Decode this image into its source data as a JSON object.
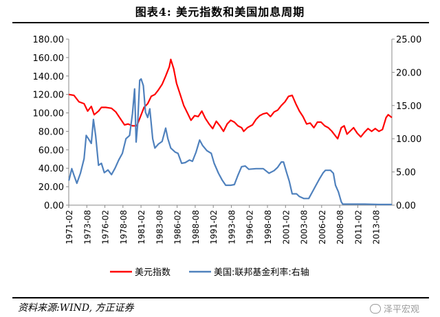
{
  "title": "图表4:  美元指数和美国加息周期",
  "source": "资料来源:WIND, 方正证券",
  "watermark": "泽平宏观",
  "chart_data": {
    "type": "line",
    "x_tick_labels": [
      "1971-02",
      "1973-08",
      "1976-02",
      "1978-08",
      "1981-02",
      "1983-08",
      "1986-02",
      "1988-08",
      "1991-02",
      "1993-08",
      "1996-02",
      "1998-08",
      "2001-02",
      "2003-08",
      "2006-02",
      "2008-08",
      "2011-02",
      "2013-08"
    ],
    "x_range": [
      1971.08,
      2015.8
    ],
    "y_left": {
      "range": [
        0,
        180
      ],
      "ticks": [
        "0.00",
        "20.00",
        "40.00",
        "60.00",
        "80.00",
        "100.00",
        "120.00",
        "140.00",
        "160.00",
        "180.00"
      ]
    },
    "y_right": {
      "range": [
        0,
        25
      ],
      "ticks": [
        "0.00",
        "5.00",
        "10.00",
        "15.00",
        "20.00",
        "25.00"
      ]
    },
    "series": [
      {
        "name": "美元指数",
        "axis": "left",
        "color": "#ff0000",
        "points": [
          [
            1971.1,
            120
          ],
          [
            1971.8,
            119
          ],
          [
            1972.5,
            112
          ],
          [
            1973.2,
            110
          ],
          [
            1973.7,
            102
          ],
          [
            1974.2,
            107
          ],
          [
            1974.6,
            98
          ],
          [
            1975.2,
            102
          ],
          [
            1975.6,
            106
          ],
          [
            1976.2,
            106
          ],
          [
            1977.0,
            105
          ],
          [
            1977.6,
            101
          ],
          [
            1978.2,
            94
          ],
          [
            1978.8,
            87
          ],
          [
            1979.3,
            88
          ],
          [
            1979.9,
            86
          ],
          [
            1980.5,
            86
          ],
          [
            1981.0,
            96
          ],
          [
            1981.5,
            106
          ],
          [
            1982.0,
            110
          ],
          [
            1982.5,
            118
          ],
          [
            1983.0,
            120
          ],
          [
            1983.5,
            125
          ],
          [
            1984.0,
            131
          ],
          [
            1984.5,
            140
          ],
          [
            1985.0,
            150
          ],
          [
            1985.2,
            158
          ],
          [
            1985.6,
            148
          ],
          [
            1986.0,
            132
          ],
          [
            1986.5,
            120
          ],
          [
            1987.0,
            108
          ],
          [
            1987.5,
            100
          ],
          [
            1988.0,
            92
          ],
          [
            1988.5,
            97
          ],
          [
            1989.0,
            96
          ],
          [
            1989.5,
            102
          ],
          [
            1990.0,
            94
          ],
          [
            1990.5,
            88
          ],
          [
            1991.0,
            83
          ],
          [
            1991.5,
            91
          ],
          [
            1992.0,
            86
          ],
          [
            1992.5,
            80
          ],
          [
            1993.0,
            88
          ],
          [
            1993.5,
            92
          ],
          [
            1994.0,
            90
          ],
          [
            1994.5,
            86
          ],
          [
            1995.0,
            84
          ],
          [
            1995.3,
            80
          ],
          [
            1995.8,
            84
          ],
          [
            1996.5,
            87
          ],
          [
            1997.0,
            93
          ],
          [
            1997.5,
            97
          ],
          [
            1998.0,
            99
          ],
          [
            1998.5,
            100
          ],
          [
            1999.0,
            96
          ],
          [
            1999.5,
            101
          ],
          [
            2000.0,
            103
          ],
          [
            2000.5,
            108
          ],
          [
            2001.0,
            112
          ],
          [
            2001.5,
            118
          ],
          [
            2002.0,
            119
          ],
          [
            2002.5,
            110
          ],
          [
            2003.0,
            102
          ],
          [
            2003.5,
            96
          ],
          [
            2004.0,
            88
          ],
          [
            2004.5,
            89
          ],
          [
            2005.0,
            84
          ],
          [
            2005.5,
            90
          ],
          [
            2006.0,
            90
          ],
          [
            2006.5,
            86
          ],
          [
            2007.0,
            84
          ],
          [
            2007.5,
            80
          ],
          [
            2008.0,
            75
          ],
          [
            2008.3,
            72
          ],
          [
            2008.8,
            84
          ],
          [
            2009.2,
            86
          ],
          [
            2009.6,
            77
          ],
          [
            2010.0,
            80
          ],
          [
            2010.5,
            84
          ],
          [
            2011.0,
            78
          ],
          [
            2011.5,
            74
          ],
          [
            2012.0,
            79
          ],
          [
            2012.5,
            83
          ],
          [
            2013.0,
            80
          ],
          [
            2013.5,
            83
          ],
          [
            2014.0,
            80
          ],
          [
            2014.5,
            82
          ],
          [
            2015.0,
            95
          ],
          [
            2015.3,
            98
          ],
          [
            2015.8,
            95
          ]
        ]
      },
      {
        "name": "美国:联邦基金利率:右轴",
        "axis": "right",
        "color": "#4f81bd",
        "points": [
          [
            1971.1,
            3.7
          ],
          [
            1971.5,
            5.5
          ],
          [
            1971.8,
            4.5
          ],
          [
            1972.2,
            3.3
          ],
          [
            1972.7,
            4.8
          ],
          [
            1973.2,
            7.0
          ],
          [
            1973.5,
            10.5
          ],
          [
            1973.8,
            10.0
          ],
          [
            1974.2,
            9.3
          ],
          [
            1974.5,
            12.9
          ],
          [
            1974.8,
            10.5
          ],
          [
            1975.2,
            6.0
          ],
          [
            1975.6,
            6.3
          ],
          [
            1976.0,
            4.9
          ],
          [
            1976.5,
            5.3
          ],
          [
            1977.0,
            4.6
          ],
          [
            1977.5,
            5.6
          ],
          [
            1978.0,
            6.8
          ],
          [
            1978.5,
            7.8
          ],
          [
            1979.0,
            10.0
          ],
          [
            1979.5,
            10.5
          ],
          [
            1979.9,
            13.8
          ],
          [
            1980.2,
            17.5
          ],
          [
            1980.4,
            9.5
          ],
          [
            1980.6,
            12.0
          ],
          [
            1980.9,
            18.8
          ],
          [
            1981.1,
            19.0
          ],
          [
            1981.4,
            18.0
          ],
          [
            1981.7,
            14.0
          ],
          [
            1982.0,
            13.2
          ],
          [
            1982.3,
            14.5
          ],
          [
            1982.7,
            10.0
          ],
          [
            1983.0,
            8.6
          ],
          [
            1983.5,
            9.2
          ],
          [
            1984.0,
            9.6
          ],
          [
            1984.5,
            11.6
          ],
          [
            1984.8,
            10.0
          ],
          [
            1985.2,
            8.6
          ],
          [
            1985.8,
            8.0
          ],
          [
            1986.2,
            7.8
          ],
          [
            1986.7,
            6.3
          ],
          [
            1987.2,
            6.4
          ],
          [
            1987.8,
            6.8
          ],
          [
            1988.2,
            6.6
          ],
          [
            1988.7,
            8.0
          ],
          [
            1989.2,
            9.8
          ],
          [
            1989.6,
            9.0
          ],
          [
            1990.2,
            8.2
          ],
          [
            1990.8,
            7.8
          ],
          [
            1991.2,
            6.3
          ],
          [
            1991.8,
            4.8
          ],
          [
            1992.3,
            3.8
          ],
          [
            1992.8,
            3.0
          ],
          [
            1993.5,
            3.0
          ],
          [
            1994.0,
            3.1
          ],
          [
            1994.5,
            4.5
          ],
          [
            1995.0,
            5.8
          ],
          [
            1995.5,
            5.9
          ],
          [
            1996.0,
            5.4
          ],
          [
            1997.0,
            5.5
          ],
          [
            1998.0,
            5.5
          ],
          [
            1998.8,
            4.8
          ],
          [
            1999.5,
            5.2
          ],
          [
            2000.0,
            5.7
          ],
          [
            2000.5,
            6.5
          ],
          [
            2000.8,
            6.5
          ],
          [
            2001.2,
            5.0
          ],
          [
            2001.6,
            3.6
          ],
          [
            2002.0,
            1.7
          ],
          [
            2002.6,
            1.7
          ],
          [
            2003.0,
            1.3
          ],
          [
            2003.6,
            1.0
          ],
          [
            2004.3,
            1.0
          ],
          [
            2004.8,
            2.0
          ],
          [
            2005.3,
            3.0
          ],
          [
            2005.8,
            4.0
          ],
          [
            2006.3,
            4.9
          ],
          [
            2006.6,
            5.25
          ],
          [
            2007.3,
            5.25
          ],
          [
            2007.7,
            4.8
          ],
          [
            2008.0,
            3.0
          ],
          [
            2008.4,
            2.0
          ],
          [
            2008.8,
            0.5
          ],
          [
            2009.0,
            0.15
          ],
          [
            2010.0,
            0.15
          ],
          [
            2012.0,
            0.15
          ],
          [
            2014.0,
            0.1
          ],
          [
            2015.8,
            0.1
          ]
        ]
      }
    ],
    "legend": {
      "position": "bottom"
    },
    "grid": false
  }
}
